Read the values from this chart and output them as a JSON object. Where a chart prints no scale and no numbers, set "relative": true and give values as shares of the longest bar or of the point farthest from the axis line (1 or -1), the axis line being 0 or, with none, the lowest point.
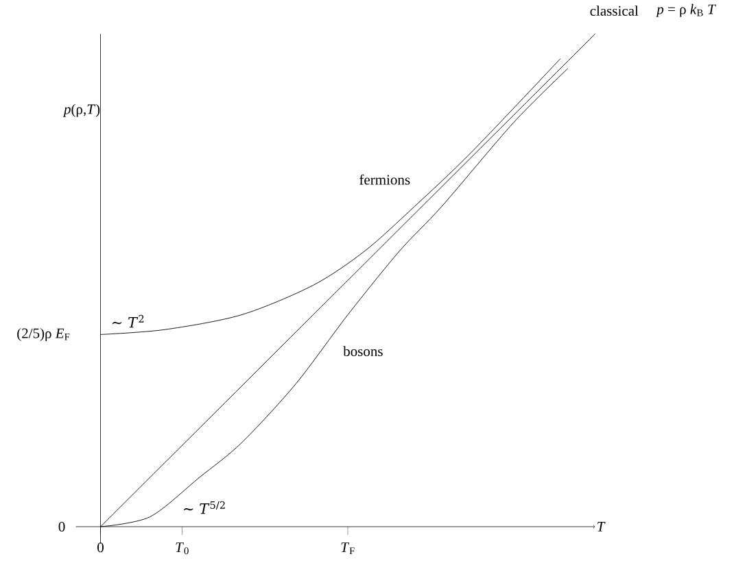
{
  "chart_data": {
    "type": "line",
    "relative": true,
    "xlabel": "T",
    "ylabel": "*p*(ρ,*T*)",
    "xlim": [
      -0.1,
      2.0
    ],
    "xticks": [
      0,
      {
        "value": 0.33,
        "label": "*T*$_{0}$"
      },
      {
        "value": 1,
        "label": "*T*$_{F}$"
      }
    ],
    "series": [
      {
        "name": "fermions",
        "color": "#000000",
        "x": [
          0,
          0.26,
          0.57,
          0.86,
          1.07,
          1.27,
          1.5,
          1.86
        ],
        "values": [
          0.39,
          0.4,
          0.43,
          0.49,
          0.56,
          0.65,
          0.76,
          0.95
        ]
      },
      {
        "name": "classical",
        "color": "#000000",
        "x": [
          0,
          2.0
        ],
        "values": [
          0,
          1
        ]
      },
      {
        "name": "bosons",
        "color": "#000000",
        "x": [
          0,
          0.2,
          0.4,
          0.57,
          0.79,
          1.0,
          1.21,
          1.38,
          1.67,
          1.89
        ],
        "values": [
          0,
          0.02,
          0.1,
          0.17,
          0.29,
          0.43,
          0.56,
          0.65,
          0.82,
          0.93
        ]
      }
    ],
    "annotations": [
      "*p* = ρ *k*$_{B}$ *T*",
      {
        "text": "0",
        "x": 0,
        "y": 0
      },
      {
        "text": "(2/5)ρ *E*$_{F}$",
        "x": 0,
        "y": 0.39
      },
      {
        "text": "∼ *T*$^{2}$",
        "x": 0.1,
        "y": 0.4
      },
      {
        "text": "∼ *T*$^{5/2}$",
        "x": 0.4,
        "y": 0.1
      }
    ]
  }
}
